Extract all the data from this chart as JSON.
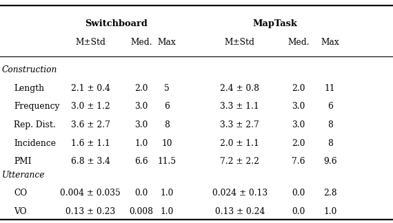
{
  "col_headers": [
    "M±Std",
    "Med.",
    "Max",
    "M±Std",
    "Med.",
    "Max"
  ],
  "sections": [
    {
      "section_label": "Construction",
      "rows": [
        {
          "label": "Length",
          "sw_mean": "2.1 ± 0.4",
          "sw_med": "2.0",
          "sw_max": "5",
          "mt_mean": "2.4 ± 0.8",
          "mt_med": "2.0",
          "mt_max": "11"
        },
        {
          "label": "Frequency",
          "sw_mean": "3.0 ± 1.2",
          "sw_med": "3.0",
          "sw_max": "6",
          "mt_mean": "3.3 ± 1.1",
          "mt_med": "3.0",
          "mt_max": "6"
        },
        {
          "label": "Rep. Dist.",
          "sw_mean": "3.6 ± 2.7",
          "sw_med": "3.0",
          "sw_max": "8",
          "mt_mean": "3.3 ± 2.7",
          "mt_med": "3.0",
          "mt_max": "8"
        },
        {
          "label": "Incidence",
          "sw_mean": "1.6 ± 1.1",
          "sw_med": "1.0",
          "sw_max": "10",
          "mt_mean": "2.0 ± 1.1",
          "mt_med": "2.0",
          "mt_max": "8"
        },
        {
          "label": "PMI",
          "sw_mean": "6.8 ± 3.4",
          "sw_med": "6.6",
          "sw_max": "11.5",
          "mt_mean": "7.2 ± 2.2",
          "mt_med": "7.6",
          "mt_max": "9.6"
        }
      ]
    },
    {
      "section_label": "Utterance",
      "rows": [
        {
          "label": "CO",
          "sw_mean": "0.004 ± 0.035",
          "sw_med": "0.0",
          "sw_max": "1.0",
          "mt_mean": "0.024 ± 0.13",
          "mt_med": "0.0",
          "mt_max": "2.8"
        },
        {
          "label": "VO",
          "sw_mean": "0.13 ± 0.23",
          "sw_med": "0.008",
          "sw_max": "1.0",
          "mt_mean": "0.13 ± 0.24",
          "mt_med": "0.0",
          "mt_max": "1.0"
        }
      ]
    }
  ],
  "figsize": [
    5.7,
    3.24
  ],
  "dpi": 100
}
